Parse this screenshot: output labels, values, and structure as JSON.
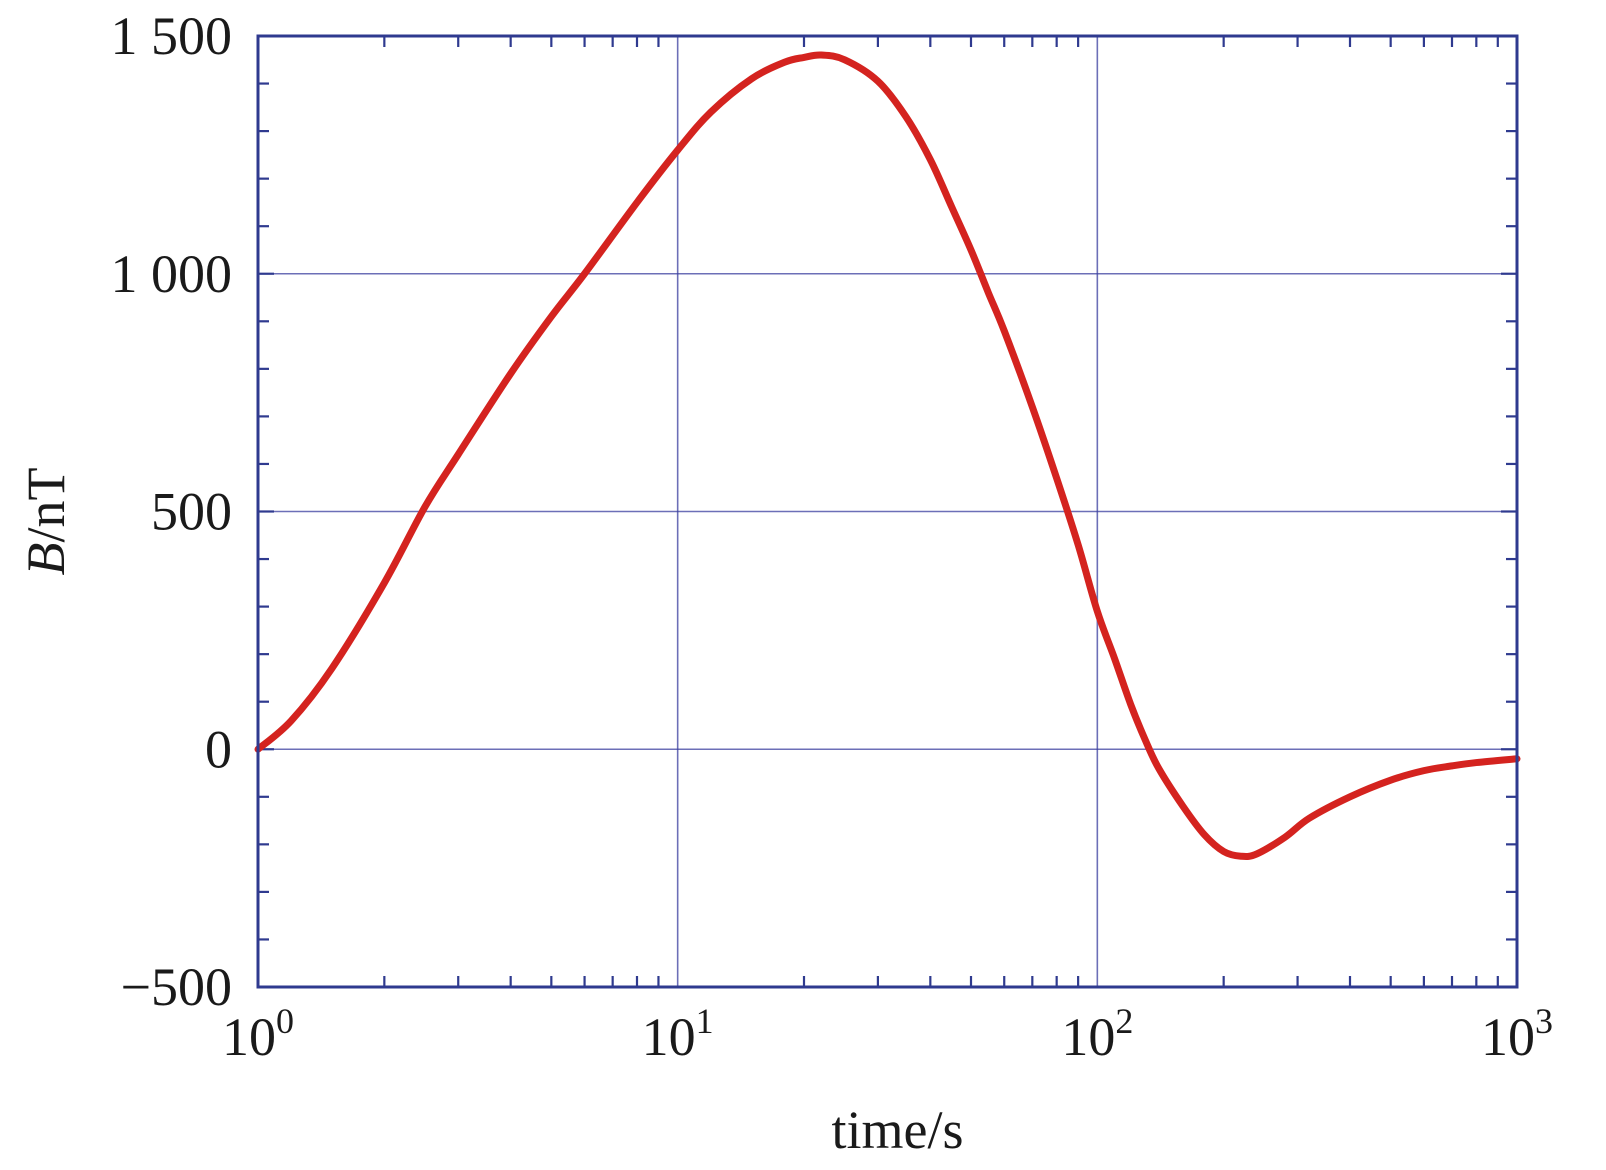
{
  "chart_data": {
    "type": "line",
    "xlabel": "time/s",
    "ylabel_italic": "B",
    "ylabel_unit": "/nT",
    "x_scale": "log",
    "xlim": [
      1,
      1000
    ],
    "ylim": [
      -500,
      1500
    ],
    "grid": true,
    "x_ticks": [
      {
        "value": 1,
        "base": "10",
        "exp": "0"
      },
      {
        "value": 10,
        "base": "10",
        "exp": "1"
      },
      {
        "value": 100,
        "base": "10",
        "exp": "2"
      },
      {
        "value": 1000,
        "base": "10",
        "exp": "3"
      }
    ],
    "y_ticks": [
      {
        "value": 1500,
        "label": "1 500"
      },
      {
        "value": 1000,
        "label": "1 000"
      },
      {
        "value": 500,
        "label": "500"
      },
      {
        "value": 0,
        "label": "0"
      },
      {
        "value": -500,
        "label": "−500"
      }
    ],
    "series": [
      {
        "color": "#d4231f",
        "points": [
          [
            1.0,
            0
          ],
          [
            1.2,
            60
          ],
          [
            1.5,
            170
          ],
          [
            2.0,
            350
          ],
          [
            2.5,
            510
          ],
          [
            3.0,
            620
          ],
          [
            4.0,
            790
          ],
          [
            5.0,
            910
          ],
          [
            6.0,
            1000
          ],
          [
            8.0,
            1150
          ],
          [
            10,
            1260
          ],
          [
            12,
            1340
          ],
          [
            15,
            1410
          ],
          [
            18,
            1445
          ],
          [
            20,
            1455
          ],
          [
            22,
            1460
          ],
          [
            25,
            1450
          ],
          [
            30,
            1405
          ],
          [
            35,
            1330
          ],
          [
            40,
            1240
          ],
          [
            45,
            1140
          ],
          [
            50,
            1050
          ],
          [
            55,
            960
          ],
          [
            60,
            880
          ],
          [
            70,
            720
          ],
          [
            80,
            570
          ],
          [
            90,
            430
          ],
          [
            100,
            290
          ],
          [
            110,
            190
          ],
          [
            120,
            95
          ],
          [
            130,
            20
          ],
          [
            140,
            -40
          ],
          [
            160,
            -120
          ],
          [
            180,
            -180
          ],
          [
            200,
            -215
          ],
          [
            220,
            -225
          ],
          [
            240,
            -220
          ],
          [
            280,
            -185
          ],
          [
            320,
            -145
          ],
          [
            400,
            -100
          ],
          [
            500,
            -65
          ],
          [
            600,
            -45
          ],
          [
            700,
            -35
          ],
          [
            800,
            -28
          ],
          [
            1000,
            -20
          ]
        ]
      }
    ]
  }
}
